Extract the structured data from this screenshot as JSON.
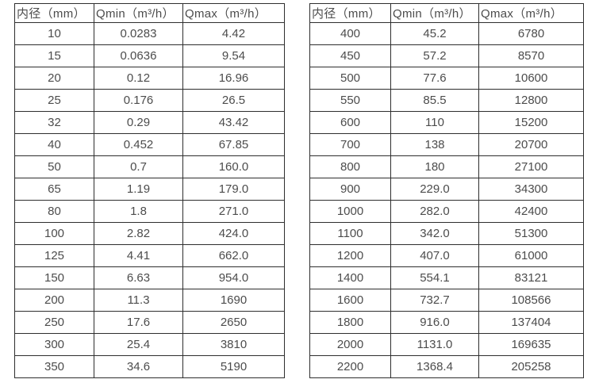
{
  "page": {
    "background": "#ffffff",
    "border_color": "#2e2e2e",
    "text_color": "#4c4c4c"
  },
  "tables": [
    {
      "name": "flow-spec-table-small-diameters",
      "headers": [
        "内径（mm）",
        "Qmin（m³/h）",
        "Qmax（m³/h）"
      ],
      "rows": [
        [
          "10",
          "0.0283",
          "4.42"
        ],
        [
          "15",
          "0.0636",
          "9.54"
        ],
        [
          "20",
          "0.12",
          "16.96"
        ],
        [
          "25",
          "0.176",
          "26.5"
        ],
        [
          "32",
          "0.29",
          "43.42"
        ],
        [
          "40",
          "0.452",
          "67.85"
        ],
        [
          "50",
          "0.7",
          "160.0"
        ],
        [
          "65",
          "1.19",
          "179.0"
        ],
        [
          "80",
          "1.8",
          "271.0"
        ],
        [
          "100",
          "2.82",
          "424.0"
        ],
        [
          "125",
          "4.41",
          "662.0"
        ],
        [
          "150",
          "6.63",
          "954.0"
        ],
        [
          "200",
          "11.3",
          "1690"
        ],
        [
          "250",
          "17.6",
          "2650"
        ],
        [
          "300",
          "25.4",
          "3810"
        ],
        [
          "350",
          "34.6",
          "5190"
        ]
      ]
    },
    {
      "name": "flow-spec-table-large-diameters",
      "headers": [
        "内径（mm）",
        "Qmin（m³/h）",
        "Qmax（m³/h）"
      ],
      "rows": [
        [
          "400",
          "45.2",
          "6780"
        ],
        [
          "450",
          "57.2",
          "8570"
        ],
        [
          "500",
          "77.6",
          "10600"
        ],
        [
          "550",
          "85.5",
          "12800"
        ],
        [
          "600",
          "110",
          "15200"
        ],
        [
          "700",
          "138",
          "20700"
        ],
        [
          "800",
          "180",
          "27100"
        ],
        [
          "900",
          "229.0",
          "34300"
        ],
        [
          "1000",
          "282.0",
          "42400"
        ],
        [
          "1100",
          "342.0",
          "51300"
        ],
        [
          "1200",
          "407.0",
          "61000"
        ],
        [
          "1400",
          "554.1",
          "83121"
        ],
        [
          "1600",
          "732.7",
          "108566"
        ],
        [
          "1800",
          "916.0",
          "137404"
        ],
        [
          "2000",
          "1131.0",
          "169635"
        ],
        [
          "2200",
          "1368.4",
          "205258"
        ]
      ]
    }
  ]
}
